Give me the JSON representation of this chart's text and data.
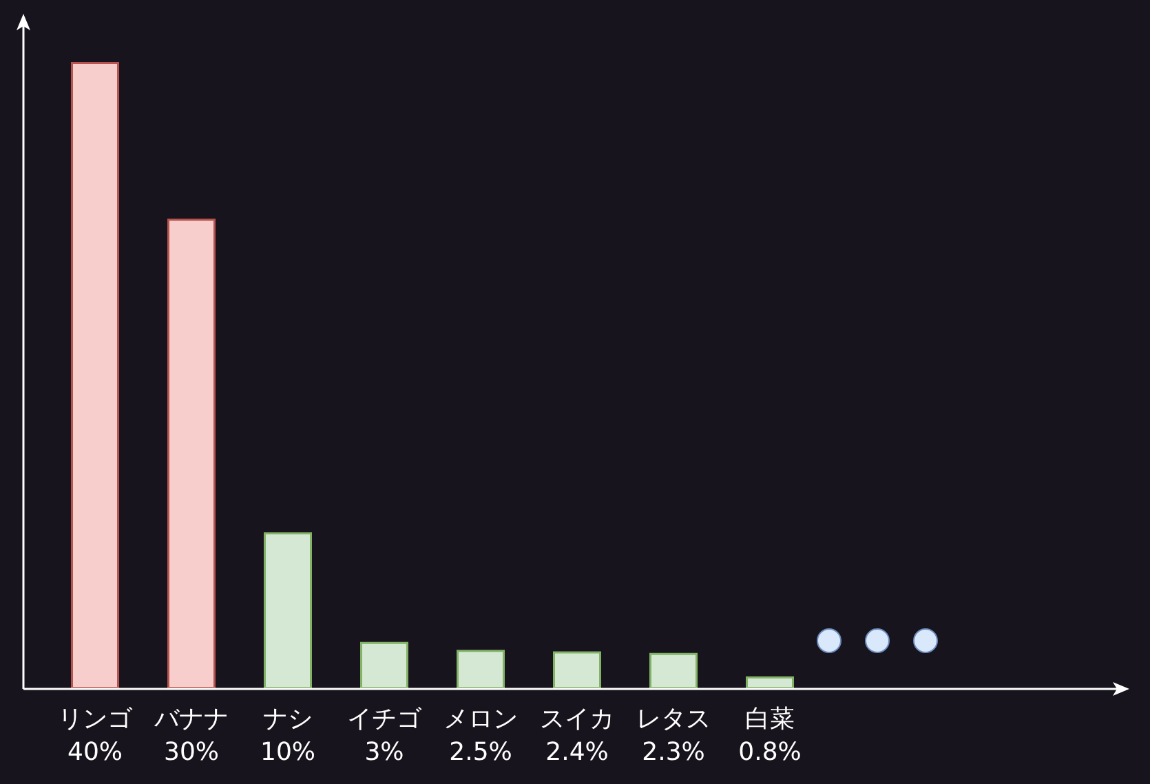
{
  "chart_data": {
    "type": "bar",
    "categories": [
      "リンゴ",
      "バナナ",
      "ナシ",
      "イチゴ",
      "メロン",
      "スイカ",
      "レタス",
      "白菜"
    ],
    "values": [
      40,
      30,
      10,
      3,
      2.5,
      2.4,
      2.3,
      0.8
    ],
    "value_labels": [
      "40%",
      "30%",
      "10%",
      "3%",
      "2.5%",
      "2.4%",
      "2.3%",
      "0.8%"
    ],
    "colors": [
      "#f8cecc",
      "#f8cecc",
      "#d5e8d4",
      "#d5e8d4",
      "#d5e8d4",
      "#d5e8d4",
      "#d5e8d4",
      "#d5e8d4"
    ]
  }
}
